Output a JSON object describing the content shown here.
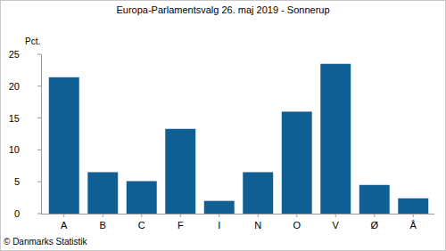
{
  "chart_data": {
    "type": "bar",
    "title": "Europa-Parlamentsvalg 26. maj 2019 - Sonnerup",
    "y_label": "Pct.",
    "source": "© Danmarks Statistik",
    "categories": [
      "A",
      "B",
      "C",
      "F",
      "I",
      "N",
      "O",
      "V",
      "Ø",
      "Å"
    ],
    "values": [
      21.4,
      6.5,
      5.1,
      13.3,
      2.0,
      6.5,
      16.0,
      23.5,
      4.5,
      2.4
    ],
    "color": "#0f5e94",
    "ylim": [
      0,
      25
    ],
    "yticks": [
      0,
      5,
      10,
      15,
      20,
      25
    ],
    "grid": false
  }
}
